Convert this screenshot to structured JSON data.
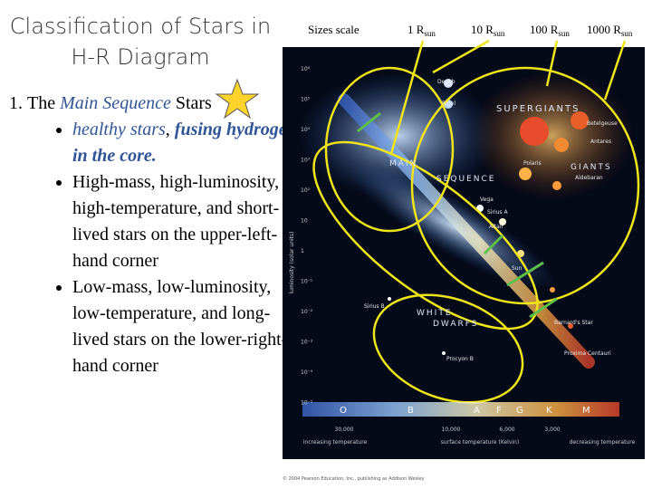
{
  "title": "Classification of Stars in H-R Diagram",
  "list": {
    "intro": "The",
    "highlight": "Main Sequence",
    "rest": "Stars",
    "bullets": [
      {
        "plain": "healthy stars",
        "sep": ",",
        "bold": "fusing hydrogen in the core."
      },
      "High-mass, high-luminosity, high-temperature, and short-lived stars on the upper-left-hand corner",
      "Low-mass, low-luminosity, low-temperature, and long-lived stars on the lower-right-hand corner"
    ]
  },
  "sizes": {
    "label": "Sizes scale",
    "items": [
      {
        "text": "1 R",
        "sub": "sun"
      },
      {
        "text": "10 R",
        "sub": "sun"
      },
      {
        "text": "100 R",
        "sub": "sun"
      },
      {
        "text": "1000 R",
        "sub": "sun"
      }
    ]
  },
  "diagram": {
    "regions": [
      "SUPERGIANTS",
      "GIANTS",
      "MAIN",
      "SEQUENCE",
      "WHITE",
      "DWARFS"
    ],
    "classes": [
      "O",
      "B",
      "A",
      "F",
      "G",
      "K",
      "M"
    ],
    "luminosity_ticks": [
      "10⁶",
      "10⁵",
      "10⁴",
      "10³",
      "10²",
      "10",
      "1",
      "10⁻¹",
      "10⁻²",
      "10⁻³",
      "10⁻⁴",
      "10⁻⁵"
    ],
    "y_label": "luminosity (solar units)",
    "x_labels": [
      "increasing temperature",
      "surface temperature (Kelvin)",
      "decreasing temperature"
    ],
    "temps": [
      "30,000",
      "10,000",
      "6,000",
      "3,000"
    ],
    "stars": [
      "Deneb",
      "Rigel",
      "Betelgeuse",
      "Antares",
      "Polaris",
      "Aldebaran",
      "Vega",
      "Sirius A",
      "Altair",
      "Sun",
      "Sirius B",
      "Procyon B",
      "Proxima Centauri",
      "Barnard's Star"
    ],
    "credit": "© 2004 Pearson Education, Inc., publishing as Addison Wesley"
  }
}
